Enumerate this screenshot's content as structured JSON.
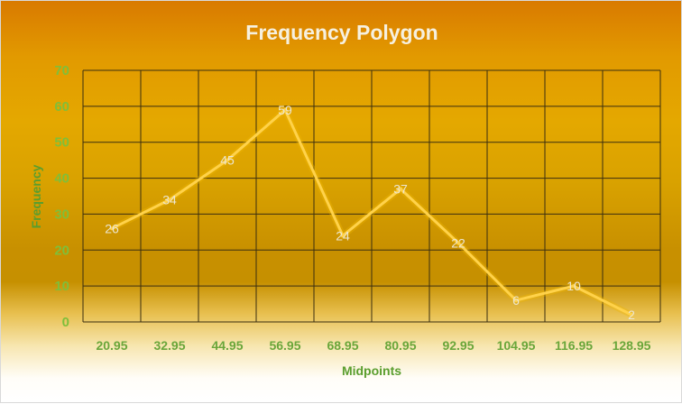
{
  "chart_data": {
    "type": "line",
    "title": "Frequency Polygon",
    "xlabel": "Midpoints",
    "ylabel": "Frequency",
    "categories": [
      "20.95",
      "32.95",
      "44.95",
      "56.95",
      "68.95",
      "80.95",
      "92.95",
      "104.95",
      "116.95",
      "128.95"
    ],
    "series": [
      {
        "values": [
          26,
          34,
          45,
          59,
          24,
          37,
          22,
          6,
          10,
          2
        ]
      }
    ],
    "y_ticks": [
      "0",
      "10",
      "20",
      "30",
      "40",
      "50",
      "60",
      "70"
    ],
    "ylim": [
      0,
      70
    ],
    "grid": true,
    "data_labels": true,
    "colors": {
      "line": "#ffd24a",
      "grid": "#3a2e10",
      "tick_text": "#7fbf3a",
      "title": "#f6f0df"
    }
  }
}
